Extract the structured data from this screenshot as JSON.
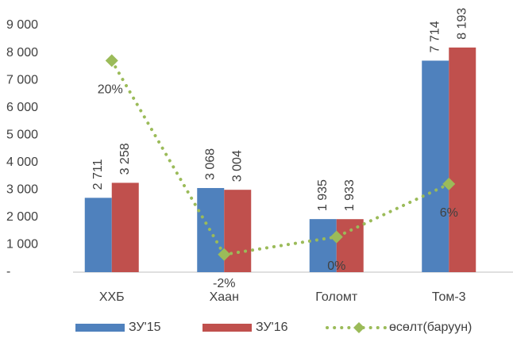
{
  "chart_data": {
    "type": "bar",
    "categories": [
      "ХХБ",
      "Хаан",
      "Голомт",
      "Том-3"
    ],
    "series": [
      {
        "name": "ЗУ'15",
        "color": "#4f81bd",
        "values": [
          2711,
          3068,
          1935,
          7714
        ],
        "value_labels": [
          "2 711",
          "3 068",
          "1 935",
          "7 714"
        ]
      },
      {
        "name": "ЗУ'16",
        "color": "#c0504d",
        "values": [
          3258,
          3004,
          1933,
          8193
        ],
        "value_labels": [
          "3 258",
          "3 004",
          "1 933",
          "8 193"
        ]
      },
      {
        "name": "өсөлт(баруун)",
        "type": "line",
        "axis": "y2",
        "color": "#9bbb59",
        "values": [
          20,
          -2,
          0,
          6
        ],
        "value_labels": [
          "20%",
          "-2%",
          "0%",
          "6%"
        ]
      }
    ],
    "ylim": [
      0,
      9000
    ],
    "yticks": [
      {
        "value": 0,
        "label": "-"
      },
      {
        "value": 1000,
        "label": "1 000"
      },
      {
        "value": 2000,
        "label": "2 000"
      },
      {
        "value": 3000,
        "label": "3 000"
      },
      {
        "value": 4000,
        "label": "4 000"
      },
      {
        "value": 5000,
        "label": "5 000"
      },
      {
        "value": 6000,
        "label": "6 000"
      },
      {
        "value": 7000,
        "label": "7 000"
      },
      {
        "value": 8000,
        "label": "8 000"
      },
      {
        "value": 9000,
        "label": "9 000"
      }
    ],
    "y2lim": [
      -4,
      24
    ],
    "legend": "bottom"
  }
}
